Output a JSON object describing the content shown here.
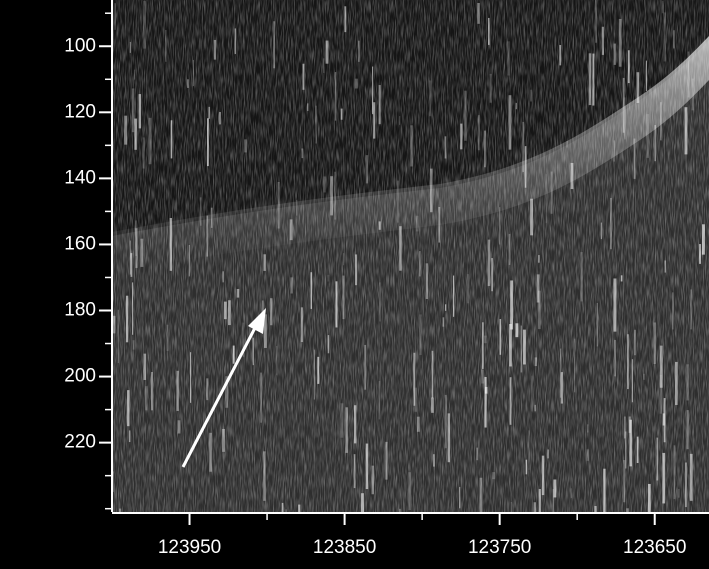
{
  "chart_data": {
    "type": "image",
    "xlim": [
      124000,
      123615
    ],
    "xticks": [
      123950,
      123850,
      123750,
      123650
    ],
    "xminor": [
      123900,
      123800,
      123700
    ],
    "ylim": [
      86,
      241
    ],
    "yticks": [
      100,
      120,
      140,
      160,
      180,
      200,
      220
    ],
    "yminor": [
      90,
      110,
      130,
      150,
      170,
      190,
      210,
      230,
      240
    ]
  }
}
